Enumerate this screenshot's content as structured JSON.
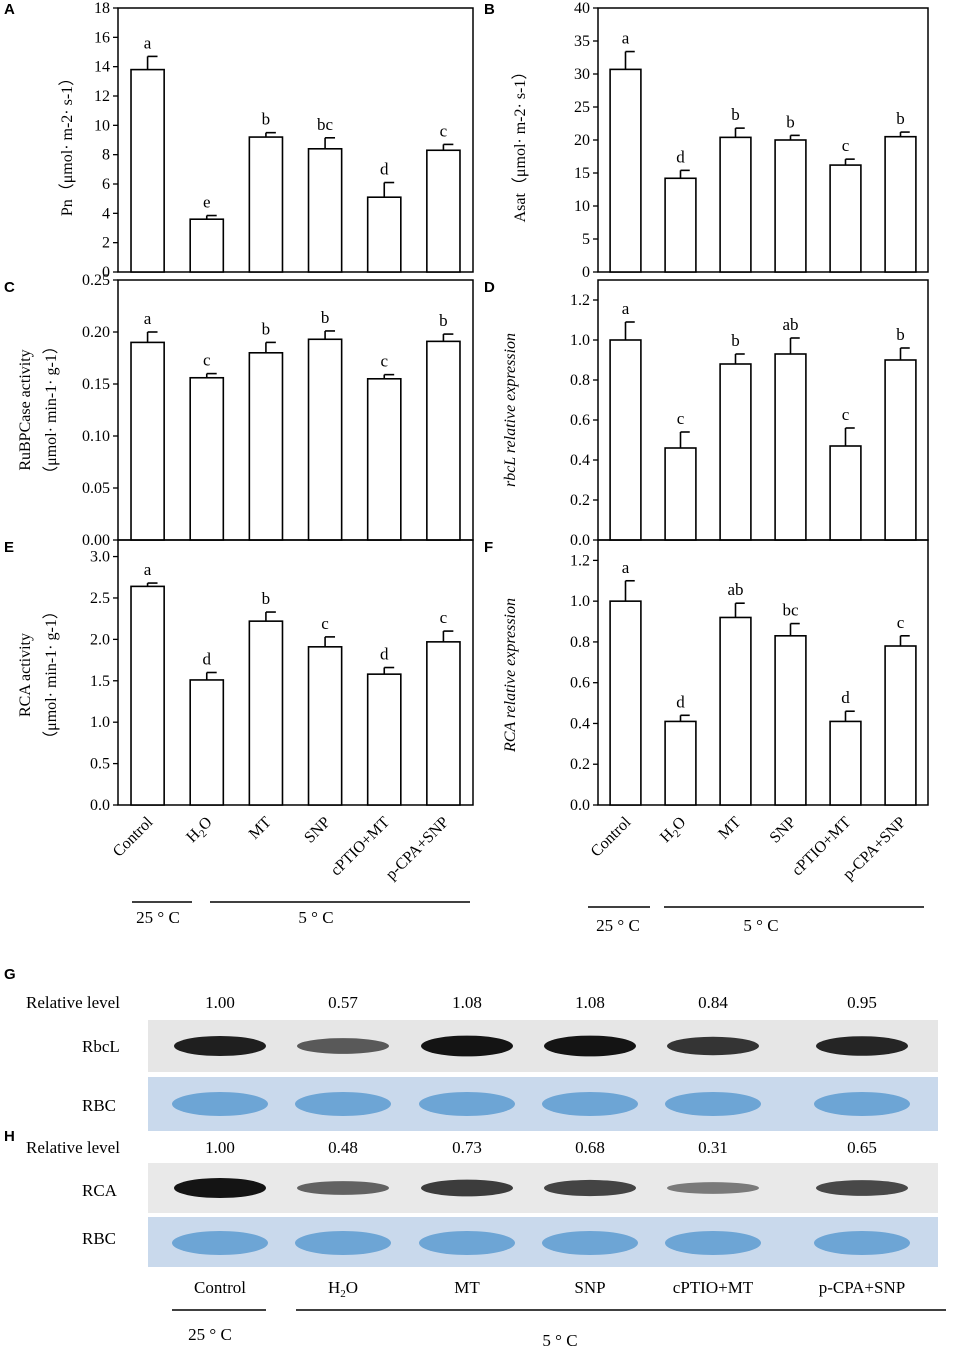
{
  "figure": {
    "panels_top": [
      "A",
      "B",
      "C",
      "D",
      "E",
      "F"
    ],
    "panel_g": "G",
    "panel_h": "H"
  },
  "treatments": [
    "Control",
    "H2O",
    "MT",
    "SNP",
    "cPTIO+MT",
    "p-CPA+SNP"
  ],
  "temps": {
    "control": "25 ° C",
    "cold": "5 ° C"
  },
  "chart_data": [
    {
      "id": "A",
      "type": "bar",
      "title": "",
      "ylabel": "Pn（μmol· m-2· s-1）",
      "ylim": [
        0,
        18
      ],
      "yticks": [
        0,
        2,
        4,
        6,
        8,
        10,
        12,
        14,
        16,
        18
      ],
      "decimals": 0,
      "categories": [
        "Control",
        "H2O",
        "MT",
        "SNP",
        "cPTIO+MT",
        "p-CPA+SNP"
      ],
      "values": [
        13.8,
        3.6,
        9.2,
        8.4,
        5.1,
        8.3
      ],
      "errors": [
        0.9,
        0.25,
        0.3,
        0.75,
        1.0,
        0.4
      ],
      "letters": [
        "a",
        "e",
        "b",
        "bc",
        "d",
        "c"
      ]
    },
    {
      "id": "B",
      "type": "bar",
      "title": "",
      "ylabel": "Asat（μmol· m-2· s-1）",
      "ylim": [
        0,
        40
      ],
      "yticks": [
        0,
        5,
        10,
        15,
        20,
        25,
        30,
        35,
        40
      ],
      "decimals": 0,
      "categories": [
        "Control",
        "H2O",
        "MT",
        "SNP",
        "cPTIO+MT",
        "p-CPA+SNP"
      ],
      "values": [
        30.7,
        14.2,
        20.4,
        20.0,
        16.2,
        20.5
      ],
      "errors": [
        2.7,
        1.2,
        1.4,
        0.7,
        0.9,
        0.7
      ],
      "letters": [
        "a",
        "d",
        "b",
        "b",
        "c",
        "b"
      ]
    },
    {
      "id": "C",
      "type": "bar",
      "title": "",
      "ylabel": "RuBPCase activity",
      "ylabel2": "（μmol· min-1· g-1）",
      "ylim": [
        0,
        0.25
      ],
      "yticks": [
        0,
        0.05,
        0.1,
        0.15,
        0.2,
        0.25
      ],
      "decimals": 2,
      "categories": [
        "Control",
        "H2O",
        "MT",
        "SNP",
        "cPTIO+MT",
        "p-CPA+SNP"
      ],
      "values": [
        0.19,
        0.156,
        0.18,
        0.193,
        0.155,
        0.191
      ],
      "errors": [
        0.01,
        0.004,
        0.01,
        0.008,
        0.004,
        0.007
      ],
      "letters": [
        "a",
        "c",
        "b",
        "b",
        "c",
        "b"
      ]
    },
    {
      "id": "D",
      "type": "bar",
      "title": "",
      "ylabel": "rbcL relative expression",
      "ylim": [
        0,
        1.3
      ],
      "yticks": [
        0,
        0.2,
        0.4,
        0.6,
        0.8,
        1.0,
        1.2
      ],
      "decimals": 1,
      "categories": [
        "Control",
        "H2O",
        "MT",
        "SNP",
        "cPTIO+MT",
        "p-CPA+SNP"
      ],
      "values": [
        1.0,
        0.46,
        0.88,
        0.93,
        0.47,
        0.9
      ],
      "errors": [
        0.09,
        0.08,
        0.05,
        0.08,
        0.09,
        0.06
      ],
      "letters": [
        "a",
        "c",
        "b",
        "ab",
        "c",
        "b"
      ]
    },
    {
      "id": "E",
      "type": "bar",
      "title": "",
      "ylabel": "RCA activity",
      "ylabel2": "（μmol· min-1· g-1）",
      "ylim": [
        0,
        3.2
      ],
      "yticks": [
        0,
        0.5,
        1.0,
        1.5,
        2.0,
        2.5,
        3.0
      ],
      "decimals": 1,
      "categories": [
        "Control",
        "H2O",
        "MT",
        "SNP",
        "cPTIO+MT",
        "p-CPA+SNP"
      ],
      "values": [
        2.64,
        1.51,
        2.22,
        1.91,
        1.58,
        1.97
      ],
      "errors": [
        0.04,
        0.09,
        0.11,
        0.12,
        0.08,
        0.13
      ],
      "letters": [
        "a",
        "d",
        "b",
        "c",
        "d",
        "c"
      ]
    },
    {
      "id": "F",
      "type": "bar",
      "title": "",
      "ylabel": "RCA relative expression",
      "ylim": [
        0,
        1.3
      ],
      "yticks": [
        0,
        0.2,
        0.4,
        0.6,
        0.8,
        1.0,
        1.2
      ],
      "decimals": 1,
      "categories": [
        "Control",
        "H2O",
        "MT",
        "SNP",
        "cPTIO+MT",
        "p-CPA+SNP"
      ],
      "values": [
        1.0,
        0.41,
        0.92,
        0.83,
        0.41,
        0.78
      ],
      "errors": [
        0.1,
        0.03,
        0.07,
        0.06,
        0.05,
        0.05
      ],
      "letters": [
        "a",
        "d",
        "ab",
        "bc",
        "d",
        "c"
      ]
    }
  ],
  "blots": {
    "g": {
      "relative_label": "Relative level",
      "levels": [
        "1.00",
        "0.57",
        "1.08",
        "1.08",
        "0.84",
        "0.95"
      ],
      "rows": [
        "RbcL",
        "RBC"
      ]
    },
    "h": {
      "relative_label": "Relative level",
      "levels": [
        "1.00",
        "0.48",
        "0.73",
        "0.68",
        "0.31",
        "0.65"
      ],
      "rows": [
        "RCA",
        "RBC"
      ]
    },
    "lane_labels": [
      "Control",
      "H2O",
      "MT",
      "SNP",
      "cPTIO+MT",
      "p-CPA+SNP"
    ],
    "band_intensity": {
      "rbcl": [
        1.0,
        0.57,
        1.08,
        1.08,
        0.84,
        0.95
      ],
      "rca": [
        1.0,
        0.48,
        0.73,
        0.68,
        0.31,
        0.65
      ]
    },
    "colors": {
      "stain": "#5d9bd1",
      "band": "#141414",
      "membrane": "#e6e6e6"
    }
  }
}
